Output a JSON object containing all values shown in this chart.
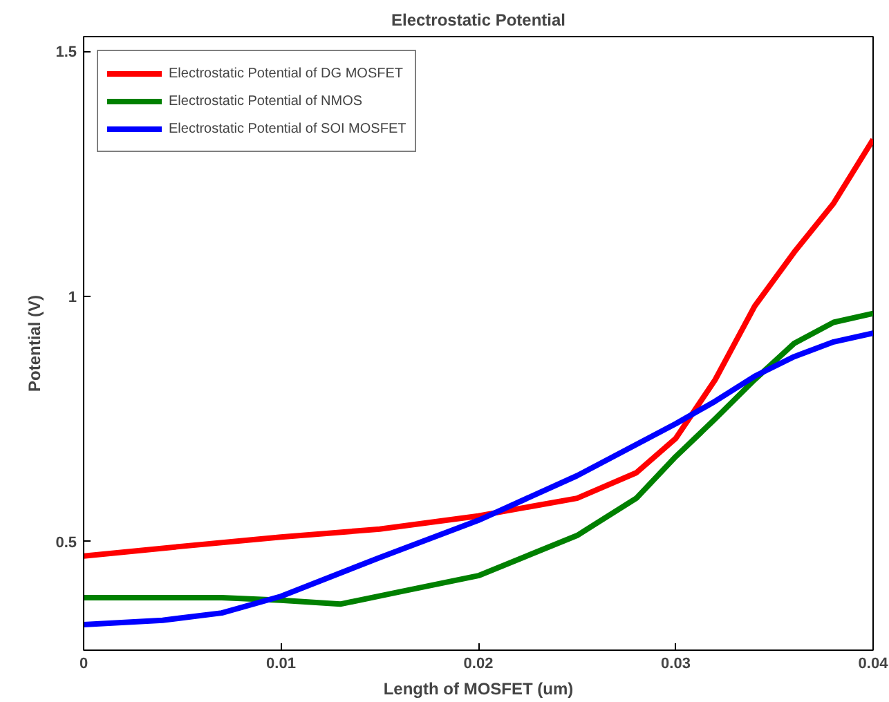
{
  "chart_data": {
    "type": "line",
    "title": "Electrostatic Potential",
    "xlabel": "Length of MOSFET (um)",
    "ylabel": "Potential (V)",
    "xlim": [
      0,
      0.04
    ],
    "xticks": [
      0,
      0.01,
      0.02,
      0.03,
      0.04
    ],
    "ylim": [
      0.278,
      1.53
    ],
    "yticks": [
      0.5,
      1,
      1.5
    ],
    "grid": false,
    "legend": "top left",
    "line_style": "solid",
    "marker": "none",
    "series": [
      {
        "name": "Electrostatic Potential of DG MOSFET",
        "color": "#ff0000",
        "x": [
          0,
          0.005,
          0.01,
          0.015,
          0.02,
          0.025,
          0.028,
          0.03,
          0.032,
          0.034,
          0.036,
          0.038,
          0.04
        ],
        "values": [
          0.47,
          0.49,
          0.509,
          0.525,
          0.552,
          0.588,
          0.64,
          0.71,
          0.83,
          0.98,
          1.09,
          1.19,
          1.32
        ]
      },
      {
        "name": "Electrostatic Potential of NMOS",
        "color": "#008000",
        "x": [
          0,
          0.007,
          0.01,
          0.013,
          0.016,
          0.02,
          0.025,
          0.028,
          0.03,
          0.032,
          0.034,
          0.036,
          0.038,
          0.04
        ],
        "values": [
          0.385,
          0.385,
          0.38,
          0.372,
          0.397,
          0.43,
          0.512,
          0.588,
          0.673,
          0.75,
          0.83,
          0.904,
          0.947,
          0.965
        ]
      },
      {
        "name": "Electrostatic Potential of SOI MOSFET",
        "color": "#0000ff",
        "x": [
          0,
          0.004,
          0.007,
          0.01,
          0.015,
          0.02,
          0.025,
          0.03,
          0.032,
          0.034,
          0.036,
          0.038,
          0.04
        ],
        "values": [
          0.33,
          0.339,
          0.354,
          0.388,
          0.467,
          0.543,
          0.634,
          0.74,
          0.786,
          0.837,
          0.877,
          0.907,
          0.925
        ]
      }
    ]
  }
}
